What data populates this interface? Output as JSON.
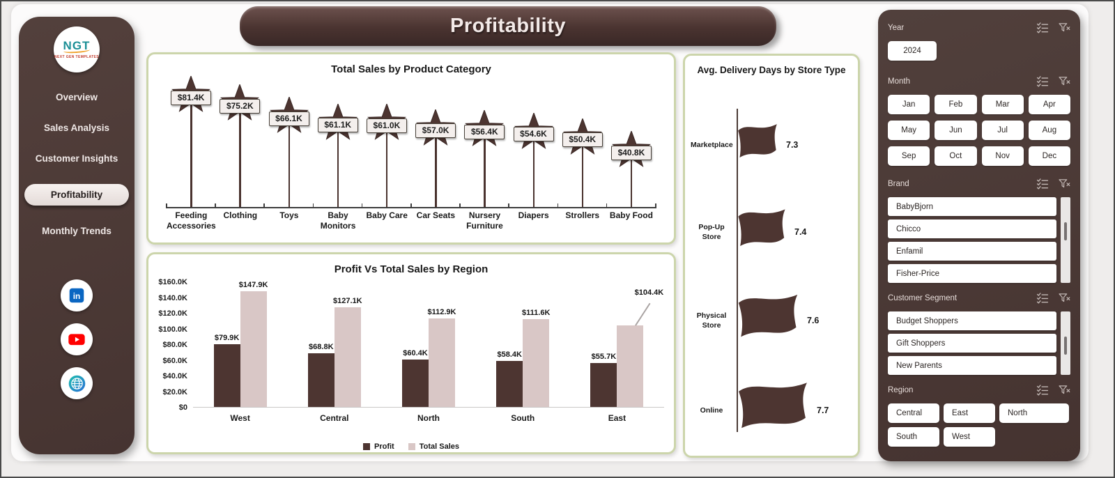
{
  "header": {
    "title": "Profitability"
  },
  "sidebar": {
    "logo": {
      "text": "NGT",
      "tagline": "NEXT GEN TEMPLATES"
    },
    "items": [
      {
        "label": "Overview",
        "active": false
      },
      {
        "label": "Sales Analysis",
        "active": false
      },
      {
        "label": "Customer Insights",
        "active": false
      },
      {
        "label": "Profitability",
        "active": true
      },
      {
        "label": "Monthly Trends",
        "active": false
      }
    ],
    "social": [
      "linkedin-icon",
      "youtube-icon",
      "website-icon"
    ]
  },
  "chart_data": [
    {
      "id": "total_sales_by_product_category",
      "type": "bar",
      "style": "star-lollipop",
      "title": "Total Sales by Product Category",
      "categories": [
        "Feeding Accessories",
        "Clothing",
        "Toys",
        "Baby Monitors",
        "Baby Care",
        "Car Seats",
        "Nursery Furniture",
        "Diapers",
        "Strollers",
        "Baby Food"
      ],
      "values": [
        81.4,
        75.2,
        66.1,
        61.1,
        61.0,
        57.0,
        56.4,
        54.6,
        50.4,
        40.8
      ],
      "labels": [
        "$81.4K",
        "$75.2K",
        "$66.1K",
        "$61.1K",
        "$61.0K",
        "$57.0K",
        "$56.4K",
        "$54.6K",
        "$50.4K",
        "$40.8K"
      ],
      "unit": "USD thousands"
    },
    {
      "id": "profit_vs_total_sales_by_region",
      "type": "bar",
      "title": "Profit Vs Total Sales by Region",
      "categories": [
        "West",
        "Central",
        "North",
        "South",
        "East"
      ],
      "series": [
        {
          "name": "Profit",
          "color": "#4d3531",
          "values": [
            79.9,
            68.8,
            60.4,
            58.4,
            55.7
          ],
          "labels": [
            "$79.9K",
            "$68.8K",
            "$60.4K",
            "$58.4K",
            "$55.7K"
          ]
        },
        {
          "name": "Total Sales",
          "color": "#d9c7c6",
          "values": [
            147.9,
            127.1,
            112.9,
            111.6,
            104.4
          ],
          "labels": [
            "$147.9K",
            "$127.1K",
            "$112.9K",
            "$111.6K",
            "$104.4K"
          ]
        }
      ],
      "ylim": [
        0,
        160
      ],
      "yticks": [
        "$160.0K",
        "$140.0K",
        "$120.0K",
        "$100.0K",
        "$80.0K",
        "$60.0K",
        "$40.0K",
        "$20.0K",
        "$0"
      ],
      "legend_position": "bottom",
      "callout": {
        "series": 1,
        "index": 4
      }
    },
    {
      "id": "avg_delivery_days_by_store_type",
      "type": "bar",
      "style": "flag",
      "title": "Avg. Delivery Days by Store Type",
      "categories": [
        "Marketplace",
        "Pop-Up Store",
        "Physical Store",
        "Online"
      ],
      "values": [
        7.3,
        7.4,
        7.6,
        7.7
      ]
    }
  ],
  "filters": [
    {
      "label": "Year",
      "layout": "single",
      "options": [
        "2024"
      ]
    },
    {
      "label": "Month",
      "layout": "grid-4",
      "options": [
        "Jan",
        "Feb",
        "Mar",
        "Apr",
        "May",
        "Jun",
        "Jul",
        "Aug",
        "Sep",
        "Oct",
        "Nov",
        "Dec"
      ]
    },
    {
      "label": "Brand",
      "layout": "list",
      "options": [
        "BabyBjorn",
        "Chicco",
        "Enfamil",
        "Fisher-Price"
      ],
      "scrollbar": true
    },
    {
      "label": "Customer Segment",
      "layout": "list",
      "options": [
        "Budget Shoppers",
        "Gift Shoppers",
        "New Parents"
      ],
      "scrollbar": true
    },
    {
      "label": "Region",
      "layout": "grid-3",
      "options": [
        "Central",
        "East",
        "North",
        "South",
        "West"
      ]
    }
  ],
  "icons": {
    "select_all": "select-all-icon",
    "clear_filter": "clear-filter-icon"
  },
  "colors": {
    "accent_dark": "#4d3531",
    "accent_light": "#d9c7c6",
    "panel_border": "#ccd5ab",
    "sidebar_bg": "#4a3734",
    "linkedin": "#0a66c2",
    "youtube": "#ff0000"
  }
}
